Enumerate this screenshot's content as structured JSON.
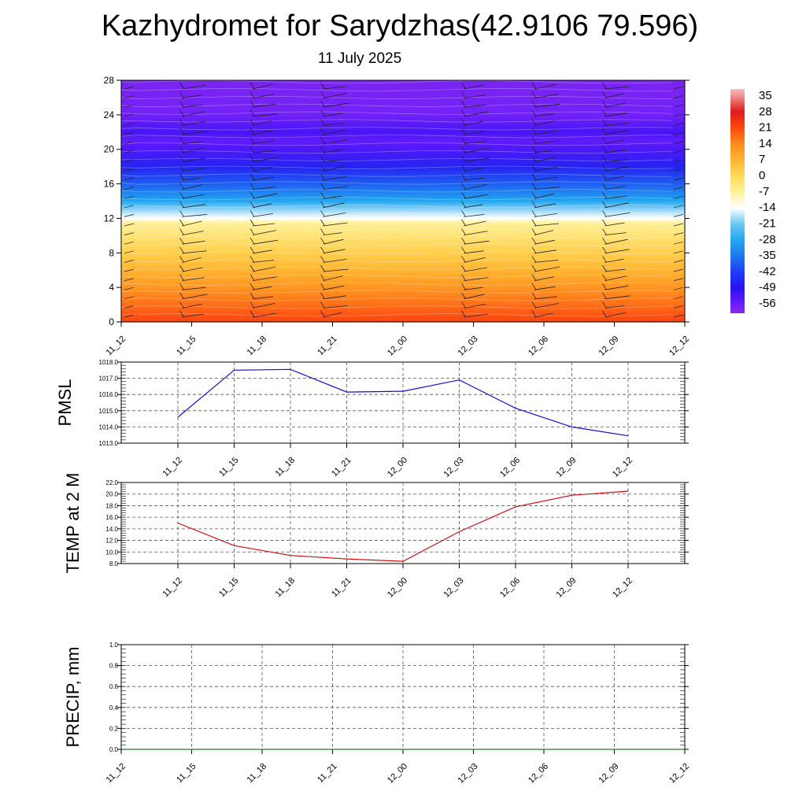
{
  "title": "Kazhydromet for Sarydzhas(42.9106 79.596)",
  "subtitle": "11 July 2025",
  "chart_data": [
    {
      "type": "heatmap",
      "title": "",
      "xlabel": "",
      "ylabel": "",
      "x_ticks": [
        "11_12",
        "11_15",
        "11_18",
        "11_21",
        "12_00",
        "12_03",
        "12_06",
        "12_09",
        "12_12"
      ],
      "y_ticks": [
        "0",
        "4",
        "8",
        "12",
        "16",
        "20",
        "24",
        "28"
      ],
      "ylim": [
        0,
        28
      ],
      "colorbar": {
        "labels": [
          "35",
          "28",
          "21",
          "14",
          "7",
          "0",
          "-7",
          "-14",
          "-21",
          "-28",
          "-35",
          "-42",
          "-49",
          "-56"
        ],
        "range": [
          -60,
          38
        ],
        "colors": {
          "-60": "#8a2be2",
          "-56": "#6a1eff",
          "-49": "#2b10f0",
          "-42": "#1f3cf5",
          "-35": "#1e78f0",
          "-28": "#22a8f0",
          "-21": "#6cc8f2",
          "-14": "#ffffff",
          "-7": "#fff19a",
          "0": "#ffd95a",
          "7": "#ffb531",
          "14": "#ff8a1e",
          "21": "#ff4a10",
          "28": "#e01a1a",
          "35": "#f09090",
          "38": "#f4c0c0"
        }
      },
      "temperature_profile": [
        {
          "level": 0,
          "value": 22
        },
        {
          "level": 2,
          "value": 17
        },
        {
          "level": 4,
          "value": 12
        },
        {
          "level": 6,
          "value": 7
        },
        {
          "level": 8,
          "value": 2
        },
        {
          "level": 10,
          "value": -3
        },
        {
          "level": 11.5,
          "value": -7
        },
        {
          "level": 12,
          "value": -14
        },
        {
          "level": 14,
          "value": -28
        },
        {
          "level": 16,
          "value": -38
        },
        {
          "level": 18,
          "value": -46
        },
        {
          "level": 20,
          "value": -53
        },
        {
          "level": 21,
          "value": -55
        },
        {
          "level": 22,
          "value": -52
        },
        {
          "level": 24,
          "value": -57
        },
        {
          "level": 28,
          "value": -58
        }
      ],
      "wind_barb_columns": [
        "11_15",
        "11_18",
        "11_21",
        "12_03",
        "12_06",
        "12_09"
      ]
    },
    {
      "type": "line",
      "title": "",
      "xlabel": "",
      "ylabel": "PMSL",
      "categories": [
        "11_12",
        "11_15",
        "11_18",
        "11_21",
        "12_00",
        "12_03",
        "12_06",
        "12_09",
        "12_12"
      ],
      "values": [
        1014.6,
        1017.5,
        1017.55,
        1016.15,
        1016.2,
        1016.9,
        1015.15,
        1014.0,
        1013.45
      ],
      "ylim": [
        1013.0,
        1018.0
      ],
      "y_ticks": [
        "1013.0",
        "1014.0",
        "1015.0",
        "1016.0",
        "1017.0",
        "1018.0"
      ],
      "line_color": "#1010d0",
      "grid": true
    },
    {
      "type": "line",
      "title": "",
      "xlabel": "",
      "ylabel": "TEMP at 2 M",
      "categories": [
        "11_12",
        "11_15",
        "11_18",
        "11_21",
        "12_00",
        "12_03",
        "12_06",
        "12_09",
        "12_12"
      ],
      "values": [
        15.0,
        11.1,
        9.4,
        8.8,
        8.4,
        13.5,
        17.8,
        19.8,
        20.5
      ],
      "ylim": [
        8.0,
        22.0
      ],
      "y_ticks": [
        "8.0",
        "10.0",
        "12.0",
        "14.0",
        "16.0",
        "18.0",
        "20.0",
        "22.0"
      ],
      "line_color": "#d01010",
      "grid": true
    },
    {
      "type": "line",
      "title": "",
      "xlabel": "",
      "ylabel": "PRECIP, mm",
      "categories": [
        "11_12",
        "11_15",
        "11_18",
        "11_21",
        "12_00",
        "12_03",
        "12_06",
        "12_09",
        "12_12"
      ],
      "values": [
        0,
        0,
        0,
        0,
        0,
        0,
        0,
        0,
        0
      ],
      "ylim": [
        0.0,
        1.0
      ],
      "y_ticks": [
        "0.0",
        "0.2",
        "0.4",
        "0.6",
        "0.8",
        "1.0"
      ],
      "line_color": "#2a7a2a",
      "grid": true
    }
  ]
}
